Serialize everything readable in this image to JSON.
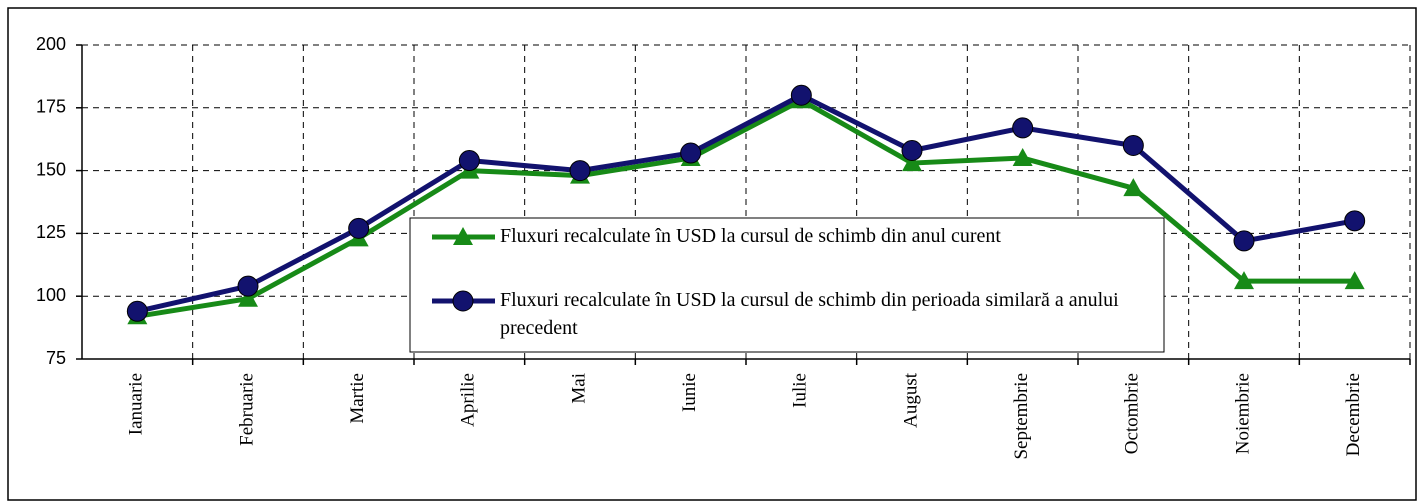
{
  "chart_data": {
    "type": "line",
    "categories": [
      "Ianuarie",
      "Februarie",
      "Martie",
      "Aprilie",
      "Mai",
      "Iunie",
      "Iulie",
      "August",
      "Septembrie",
      "Octombrie",
      "Noiembrie",
      "Decembrie"
    ],
    "series": [
      {
        "name": "Fluxuri recalculate în USD la cursul de schimb din anul curent",
        "color": "#178a17",
        "marker": "triangle",
        "values": [
          92,
          99,
          123,
          150,
          148,
          155,
          178,
          153,
          155,
          143,
          106,
          106
        ]
      },
      {
        "name": "Fluxuri recalculate în USD la cursul de schimb din perioada similară a anului precedent",
        "color": "#12126e",
        "marker": "circle",
        "values": [
          94,
          104,
          127,
          154,
          150,
          157,
          180,
          158,
          167,
          160,
          122,
          130
        ]
      }
    ],
    "ylim": [
      75,
      200
    ],
    "yticks": [
      75,
      100,
      125,
      150,
      175,
      200
    ],
    "grid": true
  }
}
